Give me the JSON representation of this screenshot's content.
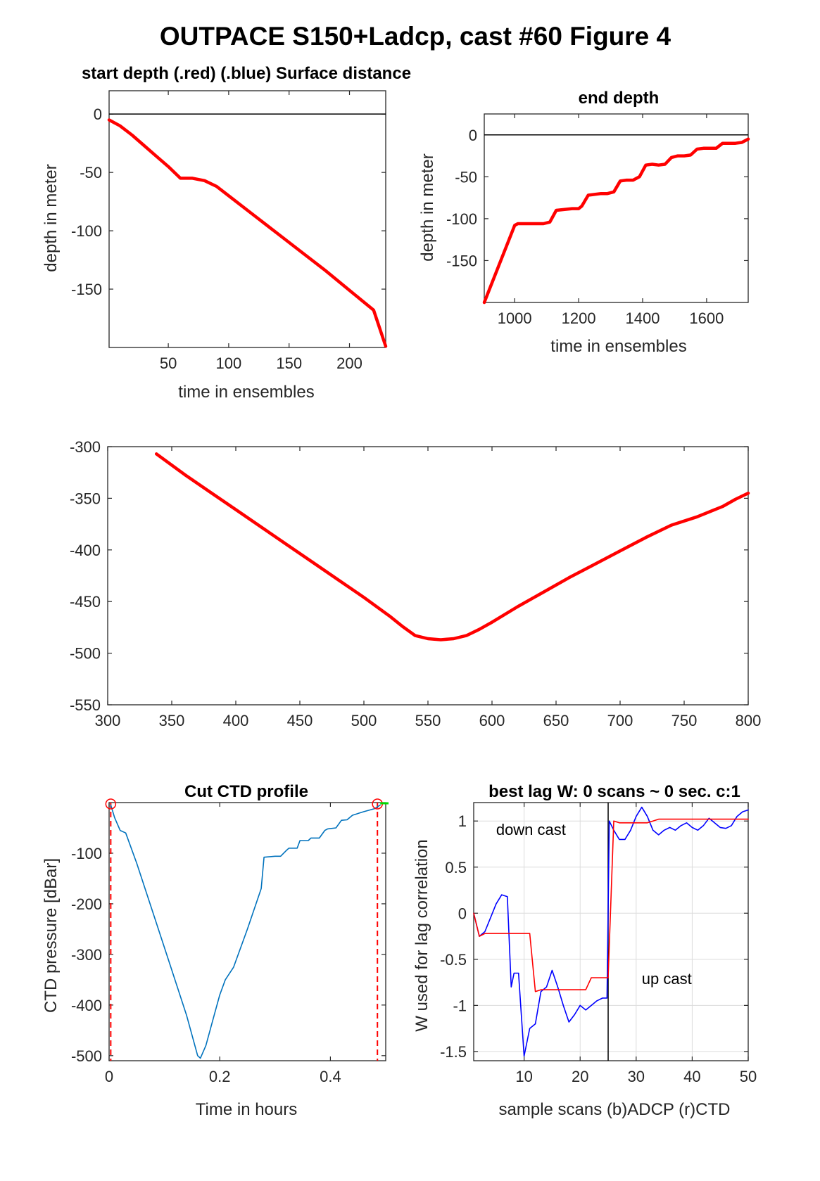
{
  "figure_title": "OUTPACE S150+Ladcp, cast #60   Figure 4",
  "chart_data": [
    {
      "id": "start",
      "type": "line",
      "title": "start depth (.red) (.blue) Surface distance",
      "xlabel": "time in ensembles",
      "ylabel": "depth in meter",
      "xlim": [
        1,
        230
      ],
      "ylim": [
        -200,
        20
      ],
      "xticks": [
        50,
        100,
        150,
        200
      ],
      "yticks": [
        0,
        -50,
        -100,
        -150
      ],
      "zero_line": true,
      "series": [
        {
          "color": "#ff0000",
          "x": [
            1,
            10,
            20,
            30,
            40,
            50,
            60,
            70,
            80,
            90,
            100,
            120,
            140,
            160,
            180,
            200,
            220,
            230
          ],
          "y": [
            -5,
            -10,
            -18,
            -27,
            -36,
            -45,
            -55,
            -55,
            -57,
            -62,
            -70,
            -86,
            -102,
            -118,
            -134,
            -151,
            -168,
            -199
          ]
        }
      ]
    },
    {
      "id": "end",
      "type": "line",
      "title": "end depth",
      "xlabel": "time in ensembles",
      "ylabel": "depth in meter",
      "xlim": [
        905,
        1730
      ],
      "ylim": [
        -200,
        25
      ],
      "xticks": [
        1000,
        1200,
        1400,
        1600
      ],
      "yticks": [
        0,
        -50,
        -100,
        -150
      ],
      "zero_line": true,
      "series": [
        {
          "color": "#ff0000",
          "x": [
            905,
            1000,
            1010,
            1060,
            1090,
            1110,
            1130,
            1180,
            1200,
            1210,
            1230,
            1270,
            1290,
            1310,
            1330,
            1350,
            1370,
            1390,
            1410,
            1430,
            1450,
            1470,
            1490,
            1510,
            1530,
            1550,
            1570,
            1590,
            1610,
            1630,
            1650,
            1670,
            1690,
            1710,
            1730
          ],
          "y": [
            -200,
            -108,
            -106,
            -106,
            -106,
            -104,
            -90,
            -88,
            -88,
            -85,
            -72,
            -70,
            -70,
            -68,
            -55,
            -54,
            -54,
            -50,
            -36,
            -35,
            -36,
            -35,
            -27,
            -25,
            -25,
            -24,
            -17,
            -16,
            -16,
            -16,
            -10,
            -10,
            -10,
            -9,
            -5
          ]
        }
      ]
    },
    {
      "id": "middle",
      "type": "line",
      "title": "",
      "xlabel": "",
      "ylabel": "",
      "xlim": [
        300,
        800
      ],
      "ylim": [
        -550,
        -300
      ],
      "xticks": [
        300,
        350,
        400,
        450,
        500,
        550,
        600,
        650,
        700,
        750,
        800
      ],
      "yticks": [
        -300,
        -350,
        -400,
        -450,
        -500,
        -550
      ],
      "series": [
        {
          "color": "#ff0000",
          "x": [
            338,
            360,
            380,
            400,
            420,
            440,
            460,
            480,
            500,
            520,
            530,
            540,
            550,
            560,
            570,
            580,
            590,
            600,
            620,
            640,
            660,
            680,
            700,
            720,
            740,
            760,
            780,
            790,
            800
          ],
          "y": [
            -307,
            -327,
            -344,
            -361,
            -378,
            -395,
            -412,
            -429,
            -446,
            -464,
            -474,
            -483,
            -486,
            -487,
            -486,
            -483,
            -477,
            -470,
            -455,
            -441,
            -427,
            -414,
            -401,
            -388,
            -376,
            -368,
            -358,
            -351,
            -345
          ]
        }
      ]
    },
    {
      "id": "ctd",
      "type": "line",
      "title": "Cut CTD profile",
      "xlabel": "Time in hours",
      "ylabel": "CTD pressure [dBar]",
      "xlim": [
        0,
        0.5
      ],
      "ylim": [
        -510,
        0
      ],
      "xticks": [
        0,
        0.2,
        0.4
      ],
      "xtick_labels": [
        "0",
        "0.2",
        "0.4"
      ],
      "yticks": [
        -100,
        -200,
        -300,
        -400,
        -500
      ],
      "series": [
        {
          "color": "#0072bd",
          "x": [
            0.003,
            0.01,
            0.02,
            0.03,
            0.05,
            0.08,
            0.11,
            0.14,
            0.16,
            0.165,
            0.175,
            0.19,
            0.2,
            0.21,
            0.225,
            0.25,
            0.275,
            0.28,
            0.3,
            0.31,
            0.32,
            0.325,
            0.34,
            0.345,
            0.36,
            0.365,
            0.38,
            0.39,
            0.395,
            0.41,
            0.42,
            0.43,
            0.44,
            0.46,
            0.48,
            0.49
          ],
          "y": [
            -5,
            -30,
            -55,
            -60,
            -120,
            -220,
            -320,
            -420,
            -500,
            -505,
            -480,
            -420,
            -380,
            -350,
            -325,
            -250,
            -170,
            -108,
            -106,
            -106,
            -95,
            -90,
            -90,
            -75,
            -75,
            -70,
            -70,
            -55,
            -52,
            -50,
            -35,
            -34,
            -25,
            -18,
            -12,
            -5
          ]
        }
      ],
      "cut_lines": [
        0.003,
        0.485
      ],
      "markers": [
        0.003,
        0.485
      ]
    },
    {
      "id": "lag",
      "type": "line",
      "title": "best lag W: 0 scans ~ 0 sec.  c:1",
      "xlabel": "sample scans (b)ADCP (r)CTD",
      "ylabel": "W used for lag correlation",
      "xlim": [
        1,
        50
      ],
      "ylim": [
        -1.6,
        1.2
      ],
      "xticks": [
        10,
        20,
        30,
        40,
        50
      ],
      "yticks": [
        1,
        0.5,
        0,
        -0.5,
        -1,
        -1.5
      ],
      "ytick_labels": [
        "1",
        "0.5",
        "0",
        "-0.5",
        "-1",
        "-1.5"
      ],
      "grid": true,
      "divider_x": 25,
      "annotations": [
        {
          "text": "down cast",
          "x": 5,
          "y": 0.85
        },
        {
          "text": "up cast",
          "x": 31,
          "y": -0.77
        }
      ],
      "series": [
        {
          "color": "#0000ff",
          "x": [
            1,
            2,
            3,
            4,
            5,
            6,
            7,
            7.7,
            8.2,
            9,
            10,
            11,
            12,
            13,
            14,
            15,
            16,
            17,
            18,
            19,
            20,
            21,
            22,
            23,
            24,
            24.8,
            25.2,
            26,
            27,
            28,
            29,
            30,
            31,
            32,
            33,
            34,
            35,
            36,
            37,
            38,
            39,
            40,
            41,
            42,
            43,
            44,
            45,
            46,
            47,
            48,
            49,
            50
          ],
          "y": [
            0,
            -0.25,
            -0.2,
            -0.05,
            0.1,
            0.2,
            0.18,
            -0.8,
            -0.65,
            -0.65,
            -1.55,
            -1.25,
            -1.2,
            -0.85,
            -0.8,
            -0.62,
            -0.8,
            -1.0,
            -1.18,
            -1.1,
            -1.0,
            -1.05,
            -1.0,
            -0.95,
            -0.92,
            -0.92,
            1.0,
            0.9,
            0.8,
            0.8,
            0.9,
            1.05,
            1.15,
            1.05,
            0.9,
            0.85,
            0.9,
            0.93,
            0.9,
            0.95,
            0.98,
            0.93,
            0.9,
            0.95,
            1.03,
            0.98,
            0.93,
            0.92,
            0.95,
            1.05,
            1.1,
            1.12
          ]
        },
        {
          "color": "#ff0000",
          "x": [
            1,
            2,
            3,
            4,
            5,
            6,
            7,
            8,
            9,
            10,
            11,
            12,
            13,
            14,
            15,
            16,
            17,
            18,
            19,
            20,
            21,
            22,
            23,
            24,
            25,
            26,
            27,
            28,
            29,
            30,
            31,
            32,
            33,
            34,
            35,
            36,
            37,
            38,
            39,
            40,
            41,
            42,
            43,
            44,
            45,
            46,
            47,
            48,
            49,
            50
          ],
          "y": [
            0,
            -0.25,
            -0.22,
            -0.22,
            -0.22,
            -0.22,
            -0.22,
            -0.22,
            -0.22,
            -0.22,
            -0.22,
            -0.85,
            -0.83,
            -0.83,
            -0.83,
            -0.83,
            -0.83,
            -0.83,
            -0.83,
            -0.83,
            -0.83,
            -0.7,
            -0.7,
            -0.7,
            -0.7,
            1.0,
            0.98,
            0.98,
            0.98,
            0.98,
            0.98,
            0.98,
            1.0,
            1.02,
            1.02,
            1.02,
            1.02,
            1.02,
            1.02,
            1.02,
            1.02,
            1.02,
            1.02,
            1.02,
            1.02,
            1.02,
            1.02,
            1.02,
            1.02,
            1.02
          ]
        }
      ]
    }
  ]
}
